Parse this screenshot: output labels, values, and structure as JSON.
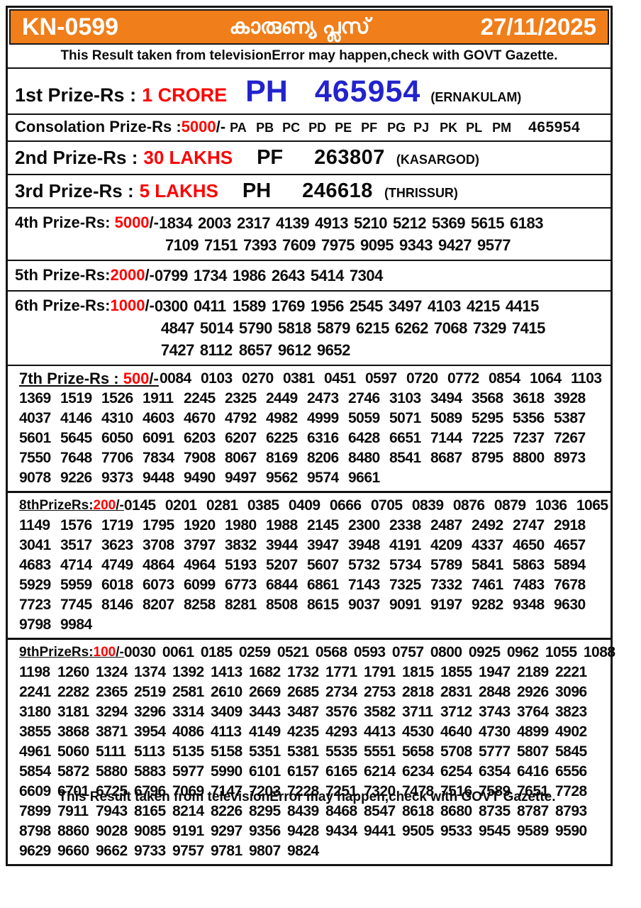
{
  "header": {
    "code": "KN-0599",
    "title_malayalam": "കാരുണ്യ പ്ലസ്",
    "date": "27/11/2025"
  },
  "disclaimer": "This Result taken from televisionError may happen,check with GOVT Gazette.",
  "colors": {
    "header_orange": "#F07E1A",
    "amount_red": "#FF0000",
    "first_prize_blue": "#2323CD"
  },
  "prizes": {
    "p1": {
      "label": "1st Prize-Rs :",
      "amount": "1 CRORE",
      "series": "PH",
      "number": "465954",
      "location": "(ERNAKULAM)"
    },
    "consolation": {
      "label": "Consolation Prize-Rs :",
      "amount": "5000",
      "suffix": "/-",
      "series": [
        "PA",
        "PB",
        "PC",
        "PD",
        "PE",
        "PF",
        "PG",
        "PJ",
        "PK",
        "PL",
        "PM"
      ],
      "number": "465954"
    },
    "p2": {
      "label": "2nd Prize-Rs :",
      "amount": "30 LAKHS",
      "series": "PF",
      "number": "263807",
      "location": "(KASARGOD)"
    },
    "p3": {
      "label": "3rd Prize-Rs :",
      "amount": "5 LAKHS",
      "series": "PH",
      "number": "246618",
      "location": "(THRISSUR)"
    },
    "p4": {
      "label": "4th Prize-Rs: ",
      "amount": "5000",
      "suffix": "/-",
      "rows": [
        [
          "1834",
          "2003",
          "2317",
          "4139",
          "4913",
          "5210",
          "5212",
          "5369",
          "5615",
          "6183"
        ],
        [
          "7109",
          "7151",
          "7393",
          "7609",
          "7975",
          "9095",
          "9343",
          "9427",
          "9577"
        ]
      ]
    },
    "p5": {
      "label": "5th Prize-Rs:",
      "amount": "2000",
      "suffix": "/-",
      "rows": [
        [
          "0799",
          "1734",
          "1986",
          "2643",
          "5414",
          "7304"
        ]
      ]
    },
    "p6": {
      "label": "6th Prize-Rs:",
      "amount": "1000",
      "suffix": "/-",
      "rows": [
        [
          "0300",
          "0411",
          "1589",
          "1769",
          "1956",
          "2545",
          "3497",
          "4103",
          "4215",
          "4415"
        ],
        [
          "4847",
          "5014",
          "5790",
          "5818",
          "5879",
          "6215",
          "6262",
          "7068",
          "7329",
          "7415"
        ],
        [
          "7427",
          "8112",
          "8657",
          "9612",
          "9652"
        ]
      ]
    },
    "p7": {
      "label": "7th Prize-Rs : ",
      "amount": "500",
      "suffix": "/-",
      "rows": [
        [
          "0084",
          "0103",
          "0270",
          "0381",
          "0451",
          "0597",
          "0720",
          "0772",
          "0854",
          "1064",
          "1103"
        ],
        [
          "1369",
          "1519",
          "1526",
          "1911",
          "2245",
          "2325",
          "2449",
          "2473",
          "2746",
          "3103",
          "3494",
          "3568",
          "3618",
          "3928"
        ],
        [
          "4037",
          "4146",
          "4310",
          "4603",
          "4670",
          "4792",
          "4982",
          "4999",
          "5059",
          "5071",
          "5089",
          "5295",
          "5356",
          "5387"
        ],
        [
          "5601",
          "5645",
          "6050",
          "6091",
          "6203",
          "6207",
          "6225",
          "6316",
          "6428",
          "6651",
          "7144",
          "7225",
          "7237",
          "7267"
        ],
        [
          "7550",
          "7648",
          "7706",
          "7834",
          "7908",
          "8067",
          "8169",
          "8206",
          "8480",
          "8541",
          "8687",
          "8795",
          "8800",
          "8973"
        ],
        [
          "9078",
          "9226",
          "9373",
          "9448",
          "9490",
          "9497",
          "9562",
          "9574",
          "9661"
        ]
      ]
    },
    "p8": {
      "label": "8thPrizeRs:",
      "amount": "200",
      "suffix": "/-",
      "rows": [
        [
          "0145",
          "0201",
          "0281",
          "0385",
          "0409",
          "0666",
          "0705",
          "0839",
          "0876",
          "0879",
          "1036",
          "1065"
        ],
        [
          "1149",
          "1576",
          "1719",
          "1795",
          "1920",
          "1980",
          "1988",
          "2145",
          "2300",
          "2338",
          "2487",
          "2492",
          "2747",
          "2918"
        ],
        [
          "3041",
          "3517",
          "3623",
          "3708",
          "3797",
          "3832",
          "3944",
          "3947",
          "3948",
          "4191",
          "4209",
          "4337",
          "4650",
          "4657"
        ],
        [
          "4683",
          "4714",
          "4749",
          "4864",
          "4964",
          "5193",
          "5207",
          "5607",
          "5732",
          "5734",
          "5789",
          "5841",
          "5863",
          "5894"
        ],
        [
          "5929",
          "5959",
          "6018",
          "6073",
          "6099",
          "6773",
          "6844",
          "6861",
          "7143",
          "7325",
          "7332",
          "7461",
          "7483",
          "7678"
        ],
        [
          "7723",
          "7745",
          "8146",
          "8207",
          "8258",
          "8281",
          "8508",
          "8615",
          "9037",
          "9091",
          "9197",
          "9282",
          "9348",
          "9630"
        ],
        [
          "9798",
          "9984"
        ]
      ]
    },
    "p9": {
      "label": "9thPrizeRs:",
      "amount": "100",
      "suffix": "/-",
      "rows": [
        [
          "0030",
          "0061",
          "0185",
          "0259",
          "0521",
          "0568",
          "0593",
          "0757",
          "0800",
          "0925",
          "0962",
          "1055",
          "1088"
        ],
        [
          "1198",
          "1260",
          "1324",
          "1374",
          "1392",
          "1413",
          "1682",
          "1732",
          "1771",
          "1791",
          "1815",
          "1855",
          "1947",
          "2189",
          "2221"
        ],
        [
          "2241",
          "2282",
          "2365",
          "2519",
          "2581",
          "2610",
          "2669",
          "2685",
          "2734",
          "2753",
          "2818",
          "2831",
          "2848",
          "2926",
          "3096"
        ],
        [
          "3180",
          "3181",
          "3294",
          "3296",
          "3314",
          "3409",
          "3443",
          "3487",
          "3576",
          "3582",
          "3711",
          "3712",
          "3743",
          "3764",
          "3823"
        ],
        [
          "3855",
          "3868",
          "3871",
          "3954",
          "4086",
          "4113",
          "4149",
          "4235",
          "4293",
          "4413",
          "4530",
          "4640",
          "4730",
          "4899",
          "4902"
        ],
        [
          "4961",
          "5060",
          "5111",
          "5113",
          "5135",
          "5158",
          "5351",
          "5381",
          "5535",
          "5551",
          "5658",
          "5708",
          "5777",
          "5807",
          "5845"
        ],
        [
          "5854",
          "5872",
          "5880",
          "5883",
          "5977",
          "5990",
          "6101",
          "6157",
          "6165",
          "6214",
          "6234",
          "6254",
          "6354",
          "6416",
          "6556"
        ],
        [
          "6609",
          "6701",
          "6725",
          "6796",
          "7069",
          "7147",
          "7203",
          "7228",
          "7251",
          "7320",
          "7478",
          "7516",
          "7589",
          "7651",
          "7728"
        ],
        [
          "7899",
          "7911",
          "7943",
          "8165",
          "8214",
          "8226",
          "8295",
          "8439",
          "8468",
          "8547",
          "8618",
          "8680",
          "8735",
          "8787",
          "8793"
        ],
        [
          "8798",
          "8860",
          "9028",
          "9085",
          "9191",
          "9297",
          "9356",
          "9428",
          "9434",
          "9441",
          "9505",
          "9533",
          "9545",
          "9589",
          "9590"
        ],
        [
          "9629",
          "9660",
          "9662",
          "9733",
          "9757",
          "9781",
          "9807",
          "9824"
        ]
      ]
    }
  }
}
